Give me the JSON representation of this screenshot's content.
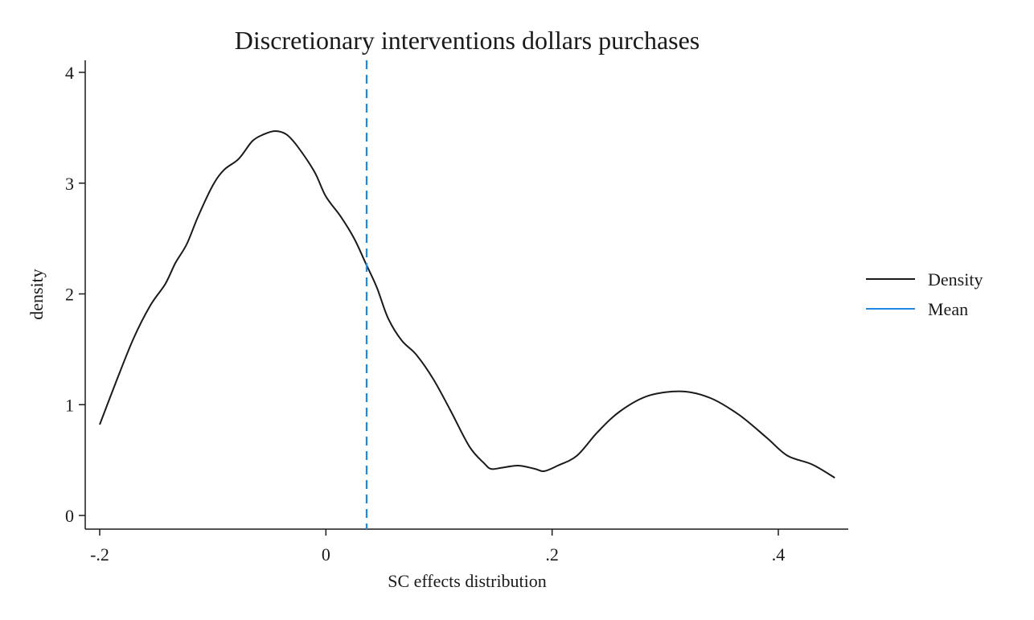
{
  "chart_data": {
    "type": "line",
    "title": "Discretionary interventions dollars purchases",
    "xlabel": "SC effects distribution",
    "ylabel": "density",
    "xlim": [
      -0.2,
      0.45
    ],
    "ylim": [
      0,
      4
    ],
    "x_ticks": [
      {
        "value": -0.2,
        "label": "-.2"
      },
      {
        "value": 0,
        "label": "0"
      },
      {
        "value": 0.2,
        "label": ".2"
      },
      {
        "value": 0.4,
        "label": ".4"
      }
    ],
    "y_ticks": [
      {
        "value": 0,
        "label": "0"
      },
      {
        "value": 1,
        "label": "1"
      },
      {
        "value": 2,
        "label": "2"
      },
      {
        "value": 3,
        "label": "3"
      },
      {
        "value": 4,
        "label": "4"
      }
    ],
    "grid": false,
    "legend_position": "right",
    "series": [
      {
        "name": "Density",
        "kind": "line",
        "color": "#1a1a1a",
        "x": [
          -0.2,
          -0.185,
          -0.17,
          -0.155,
          -0.142,
          -0.133,
          -0.123,
          -0.113,
          -0.1,
          -0.09,
          -0.077,
          -0.065,
          -0.055,
          -0.045,
          -0.035,
          -0.025,
          -0.01,
          0.0,
          0.013,
          0.025,
          0.035,
          0.045,
          0.055,
          0.067,
          0.08,
          0.095,
          0.11,
          0.127,
          0.14,
          0.146,
          0.155,
          0.17,
          0.185,
          0.193,
          0.205,
          0.222,
          0.24,
          0.26,
          0.285,
          0.315,
          0.34,
          0.365,
          0.39,
          0.408,
          0.43,
          0.45
        ],
        "y": [
          0.82,
          1.22,
          1.6,
          1.9,
          2.09,
          2.28,
          2.45,
          2.7,
          2.98,
          3.12,
          3.22,
          3.38,
          3.44,
          3.47,
          3.44,
          3.33,
          3.1,
          2.88,
          2.7,
          2.5,
          2.28,
          2.06,
          1.78,
          1.58,
          1.45,
          1.23,
          0.95,
          0.62,
          0.47,
          0.42,
          0.43,
          0.45,
          0.42,
          0.4,
          0.45,
          0.54,
          0.75,
          0.94,
          1.08,
          1.12,
          1.06,
          0.91,
          0.7,
          0.54,
          0.46,
          0.34
        ]
      },
      {
        "name": "Mean",
        "kind": "vline",
        "color": "#1e88e5",
        "dashed": true,
        "x_value": 0.036
      }
    ]
  }
}
